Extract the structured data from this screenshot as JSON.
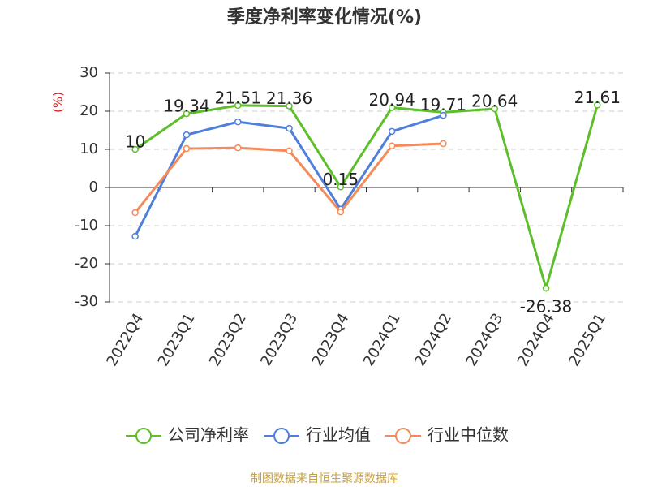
{
  "chart_data": {
    "type": "line",
    "title": "季度净利率变化情况(%)",
    "y_label": "(%)",
    "categories": [
      "2022Q4",
      "2023Q1",
      "2023Q2",
      "2023Q3",
      "2023Q4",
      "2024Q1",
      "2024Q2",
      "2024Q3",
      "2024Q4",
      "2025Q1"
    ],
    "series": [
      {
        "name": "公司净利率",
        "color": "#5cbf2a",
        "values": [
          10,
          19.34,
          21.51,
          21.36,
          0.15,
          20.94,
          19.71,
          20.64,
          -26.38,
          21.61
        ],
        "data_labels": true
      },
      {
        "name": "行业均值",
        "color": "#4e7fdb",
        "values": [
          -12.8,
          13.8,
          17.2,
          15.5,
          -5.7,
          14.7,
          18.9,
          null,
          null,
          null
        ]
      },
      {
        "name": "行业中位数",
        "color": "#f58b5a",
        "values": [
          -6.6,
          10.2,
          10.4,
          9.6,
          -6.4,
          10.9,
          11.5,
          null,
          null,
          null
        ]
      }
    ],
    "ylim": [
      -30,
      30
    ],
    "yticks": [
      -30,
      -20,
      -10,
      0,
      10,
      20,
      30
    ],
    "grid": true,
    "legend": "bottom",
    "source": "制图数据来自恒生聚源数据库"
  }
}
